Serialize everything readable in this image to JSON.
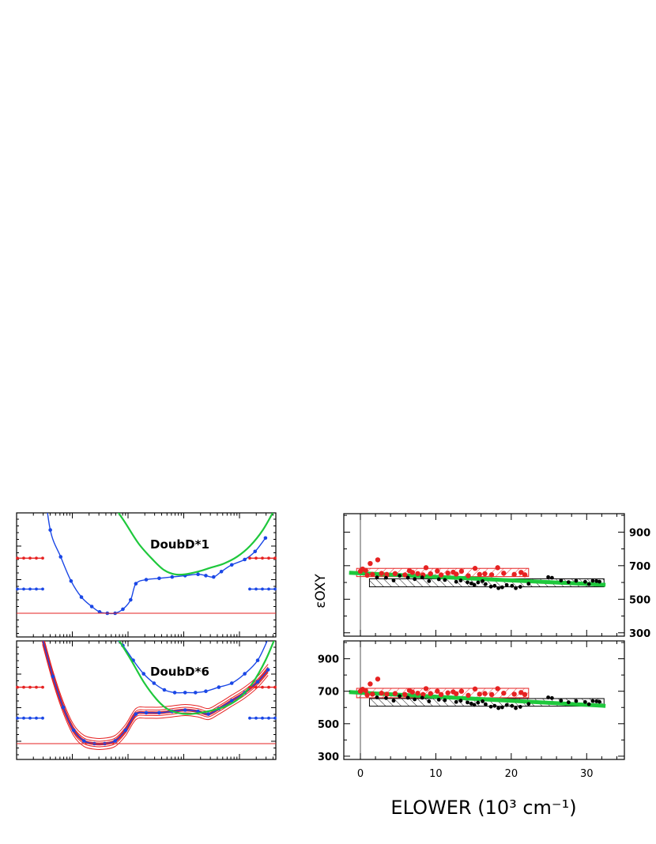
{
  "chart_data": [
    {
      "type": "line",
      "panel": "left-top",
      "annotation": "DoubD*1",
      "series": [
        {
          "color": "#1a47e6",
          "markers": true,
          "points": [
            [
              0.1,
              1.05
            ],
            [
              0.13,
              0.62
            ],
            [
              0.17,
              0.42
            ],
            [
              0.21,
              0.24
            ],
            [
              0.25,
              0.12
            ],
            [
              0.29,
              0.05
            ],
            [
              0.32,
              0.01
            ],
            [
              0.35,
              0.0
            ],
            [
              0.38,
              0.0
            ],
            [
              0.41,
              0.03
            ],
            [
              0.44,
              0.1
            ],
            [
              0.46,
              0.22
            ],
            [
              0.5,
              0.25
            ],
            [
              0.55,
              0.26
            ],
            [
              0.6,
              0.27
            ],
            [
              0.65,
              0.28
            ],
            [
              0.7,
              0.29
            ],
            [
              0.73,
              0.28
            ],
            [
              0.76,
              0.27
            ],
            [
              0.79,
              0.31
            ],
            [
              0.83,
              0.36
            ],
            [
              0.88,
              0.4
            ],
            [
              0.92,
              0.46
            ],
            [
              0.96,
              0.56
            ]
          ]
        },
        {
          "color": "#1ec83c",
          "markers": false,
          "points": [
            [
              0.2,
              1.0
            ],
            [
              0.28,
              0.93
            ],
            [
              0.35,
              0.85
            ],
            [
              0.41,
              0.7
            ],
            [
              0.47,
              0.52
            ],
            [
              0.53,
              0.39
            ],
            [
              0.57,
              0.32
            ],
            [
              0.61,
              0.29
            ],
            [
              0.65,
              0.29
            ],
            [
              0.7,
              0.31
            ],
            [
              0.75,
              0.34
            ],
            [
              0.8,
              0.37
            ],
            [
              0.85,
              0.42
            ],
            [
              0.9,
              0.5
            ],
            [
              0.95,
              0.62
            ],
            [
              1.0,
              0.79
            ]
          ]
        },
        {
          "color": "#e62222",
          "markers": false,
          "points": [
            [
              0.0,
              0.0
            ],
            [
              1.0,
              0.0
            ]
          ]
        }
      ],
      "side_levels": [
        {
          "color": "#e62222",
          "y": 0.41
        },
        {
          "color": "#1a47e6",
          "y": 0.18
        }
      ]
    },
    {
      "type": "line",
      "panel": "left-bottom",
      "annotation": "DoubD*6",
      "series": [
        {
          "color": "#1a47e6",
          "markers": true,
          "points": [
            [
              0.1,
              0.78
            ],
            [
              0.14,
              0.5
            ],
            [
              0.18,
              0.27
            ],
            [
              0.22,
              0.1
            ],
            [
              0.26,
              0.02
            ],
            [
              0.3,
              0.0
            ],
            [
              0.34,
              0.0
            ],
            [
              0.38,
              0.02
            ],
            [
              0.42,
              0.1
            ],
            [
              0.46,
              0.22
            ],
            [
              0.5,
              0.23
            ],
            [
              0.55,
              0.23
            ],
            [
              0.6,
              0.24
            ],
            [
              0.65,
              0.25
            ],
            [
              0.7,
              0.24
            ],
            [
              0.74,
              0.22
            ],
            [
              0.78,
              0.26
            ],
            [
              0.83,
              0.32
            ],
            [
              0.88,
              0.38
            ],
            [
              0.93,
              0.46
            ],
            [
              0.97,
              0.55
            ]
          ]
        },
        {
          "color": "#1a47e6",
          "markers": true,
          "points": [
            [
              0.28,
              1.0
            ],
            [
              0.33,
              0.88
            ],
            [
              0.37,
              0.8
            ],
            [
              0.41,
              0.73
            ],
            [
              0.45,
              0.62
            ],
            [
              0.49,
              0.52
            ],
            [
              0.53,
              0.45
            ],
            [
              0.57,
              0.4
            ],
            [
              0.61,
              0.38
            ],
            [
              0.65,
              0.38
            ],
            [
              0.69,
              0.38
            ],
            [
              0.73,
              0.39
            ],
            [
              0.78,
              0.42
            ],
            [
              0.83,
              0.45
            ],
            [
              0.88,
              0.52
            ],
            [
              0.93,
              0.62
            ],
            [
              0.97,
              0.78
            ]
          ]
        },
        {
          "color": "#1ec83c",
          "markers": false,
          "points": [
            [
              0.23,
              1.0
            ],
            [
              0.3,
              0.93
            ],
            [
              0.37,
              0.83
            ],
            [
              0.43,
              0.66
            ],
            [
              0.49,
              0.46
            ],
            [
              0.54,
              0.33
            ],
            [
              0.58,
              0.26
            ],
            [
              0.62,
              0.23
            ],
            [
              0.66,
              0.22
            ],
            [
              0.71,
              0.23
            ],
            [
              0.76,
              0.25
            ],
            [
              0.81,
              0.28
            ],
            [
              0.86,
              0.34
            ],
            [
              0.91,
              0.45
            ],
            [
              0.96,
              0.62
            ],
            [
              1.0,
              0.8
            ]
          ]
        },
        {
          "color": "#e62222",
          "markers": false,
          "points": [
            [
              0.0,
              0.0
            ],
            [
              1.0,
              0.0
            ]
          ]
        }
      ],
      "side_levels": [
        {
          "color": "#e62222",
          "y": 0.42
        },
        {
          "color": "#1a47e6",
          "y": 0.19
        }
      ]
    },
    {
      "type": "scatter",
      "panel": "right-top",
      "ylabel": "εOXY",
      "yticks": [
        300,
        500,
        700,
        900
      ],
      "xlim": [
        -2.2,
        35
      ],
      "ylim": [
        280,
        1010
      ],
      "fit": {
        "color": "#1ec83c",
        "x": [
          -1.5,
          32.5
        ],
        "y": [
          658,
          586
        ]
      },
      "bands": [
        {
          "color": "#e62222",
          "x": [
            -0.5,
            22.3
          ],
          "y": [
            635,
            684
          ]
        },
        {
          "color": "#000000",
          "x": [
            1.2,
            32.3
          ],
          "y": [
            574,
            622
          ]
        }
      ],
      "series": [
        {
          "color": "#e62222",
          "points": [
            [
              0.0,
              667
            ],
            [
              0.3,
              680
            ],
            [
              0.7,
              672
            ],
            [
              1.3,
              713
            ],
            [
              2.3,
              735
            ],
            [
              0.9,
              643
            ],
            [
              1.6,
              648
            ],
            [
              2.8,
              654
            ],
            [
              3.5,
              648
            ],
            [
              4.6,
              653
            ],
            [
              5.9,
              645
            ],
            [
              6.5,
              670
            ],
            [
              6.9,
              660
            ],
            [
              7.6,
              653
            ],
            [
              8.3,
              645
            ],
            [
              8.7,
              688
            ],
            [
              9.3,
              652
            ],
            [
              10.2,
              668
            ],
            [
              10.7,
              645
            ],
            [
              11.6,
              656
            ],
            [
              12.3,
              661
            ],
            [
              12.7,
              650
            ],
            [
              13.4,
              667
            ],
            [
              14.3,
              640
            ],
            [
              15.2,
              684
            ],
            [
              15.8,
              648
            ],
            [
              16.5,
              652
            ],
            [
              17.4,
              646
            ],
            [
              18.2,
              688
            ],
            [
              19.0,
              655
            ],
            [
              20.4,
              648
            ],
            [
              21.3,
              660
            ],
            [
              21.8,
              646
            ]
          ]
        },
        {
          "color": "#000000",
          "points": [
            [
              2.2,
              630
            ],
            [
              3.4,
              628
            ],
            [
              4.4,
              612
            ],
            [
              5.2,
              640
            ],
            [
              6.3,
              629
            ],
            [
              7.2,
              620
            ],
            [
              8.2,
              630
            ],
            [
              9.1,
              608
            ],
            [
              10.4,
              619
            ],
            [
              11.2,
              615
            ],
            [
              12.7,
              604
            ],
            [
              13.3,
              612
            ],
            [
              14.2,
              601
            ],
            [
              14.7,
              594
            ],
            [
              15.1,
              586
            ],
            [
              15.6,
              600
            ],
            [
              16.2,
              608
            ],
            [
              16.6,
              590
            ],
            [
              17.3,
              575
            ],
            [
              17.8,
              580
            ],
            [
              18.3,
              566
            ],
            [
              18.8,
              571
            ],
            [
              19.4,
              585
            ],
            [
              20.1,
              580
            ],
            [
              20.6,
              566
            ],
            [
              21.2,
              574
            ],
            [
              22.3,
              592
            ],
            [
              24.9,
              632
            ],
            [
              25.4,
              628
            ],
            [
              26.6,
              612
            ],
            [
              27.6,
              602
            ],
            [
              28.6,
              610
            ],
            [
              29.8,
              604
            ],
            [
              30.3,
              590
            ],
            [
              30.8,
              610
            ],
            [
              31.3,
              608
            ],
            [
              31.7,
              605
            ]
          ]
        }
      ]
    },
    {
      "type": "scatter",
      "panel": "right-bottom",
      "xlabel": "ELOWER (10³ cm⁻¹)",
      "xticks": [
        0,
        10,
        20,
        30
      ],
      "yticks": [
        300,
        500,
        700,
        900
      ],
      "xlim": [
        -2.2,
        35
      ],
      "ylim": [
        280,
        1010
      ],
      "fit": {
        "color": "#1ec83c",
        "x": [
          -1.5,
          32.5
        ],
        "y": [
          695,
          610
        ]
      },
      "bands": [
        {
          "color": "#e62222",
          "x": [
            -0.5,
            22.3
          ],
          "y": [
            660,
            718
          ]
        },
        {
          "color": "#000000",
          "x": [
            1.2,
            32.3
          ],
          "y": [
            608,
            655
          ]
        }
      ],
      "series": [
        {
          "color": "#e62222",
          "points": [
            [
              0.0,
              700
            ],
            [
              0.3,
              712
            ],
            [
              0.7,
              704
            ],
            [
              1.3,
              745
            ],
            [
              2.3,
              775
            ],
            [
              0.9,
              677
            ],
            [
              1.6,
              682
            ],
            [
              2.8,
              688
            ],
            [
              3.5,
              682
            ],
            [
              4.6,
              686
            ],
            [
              5.9,
              680
            ],
            [
              6.5,
              705
            ],
            [
              6.9,
              695
            ],
            [
              7.6,
              688
            ],
            [
              8.3,
              680
            ],
            [
              8.7,
              716
            ],
            [
              9.3,
              686
            ],
            [
              10.2,
              700
            ],
            [
              10.7,
              680
            ],
            [
              11.6,
              690
            ],
            [
              12.3,
              696
            ],
            [
              12.7,
              685
            ],
            [
              13.4,
              700
            ],
            [
              14.3,
              675
            ],
            [
              15.2,
              714
            ],
            [
              15.8,
              682
            ],
            [
              16.5,
              686
            ],
            [
              17.4,
              680
            ],
            [
              18.2,
              716
            ],
            [
              19.0,
              688
            ],
            [
              20.4,
              682
            ],
            [
              21.3,
              692
            ],
            [
              21.8,
              680
            ]
          ]
        },
        {
          "color": "#000000",
          "points": [
            [
              2.2,
              662
            ],
            [
              3.4,
              658
            ],
            [
              4.4,
              642
            ],
            [
              5.2,
              670
            ],
            [
              6.3,
              660
            ],
            [
              7.2,
              650
            ],
            [
              8.2,
              660
            ],
            [
              9.1,
              638
            ],
            [
              10.4,
              648
            ],
            [
              11.2,
              645
            ],
            [
              12.7,
              634
            ],
            [
              13.3,
              642
            ],
            [
              14.2,
              631
            ],
            [
              14.7,
              624
            ],
            [
              15.1,
              616
            ],
            [
              15.6,
              630
            ],
            [
              16.2,
              638
            ],
            [
              16.6,
              620
            ],
            [
              17.3,
              605
            ],
            [
              17.8,
              610
            ],
            [
              18.3,
              596
            ],
            [
              18.8,
              601
            ],
            [
              19.4,
              615
            ],
            [
              20.1,
              610
            ],
            [
              20.6,
              596
            ],
            [
              21.2,
              604
            ],
            [
              22.3,
              622
            ],
            [
              24.9,
              662
            ],
            [
              25.4,
              658
            ],
            [
              26.6,
              642
            ],
            [
              27.6,
              632
            ],
            [
              28.6,
              640
            ],
            [
              29.8,
              634
            ],
            [
              30.3,
              620
            ],
            [
              30.8,
              640
            ],
            [
              31.3,
              638
            ],
            [
              31.7,
              635
            ]
          ]
        }
      ]
    }
  ]
}
